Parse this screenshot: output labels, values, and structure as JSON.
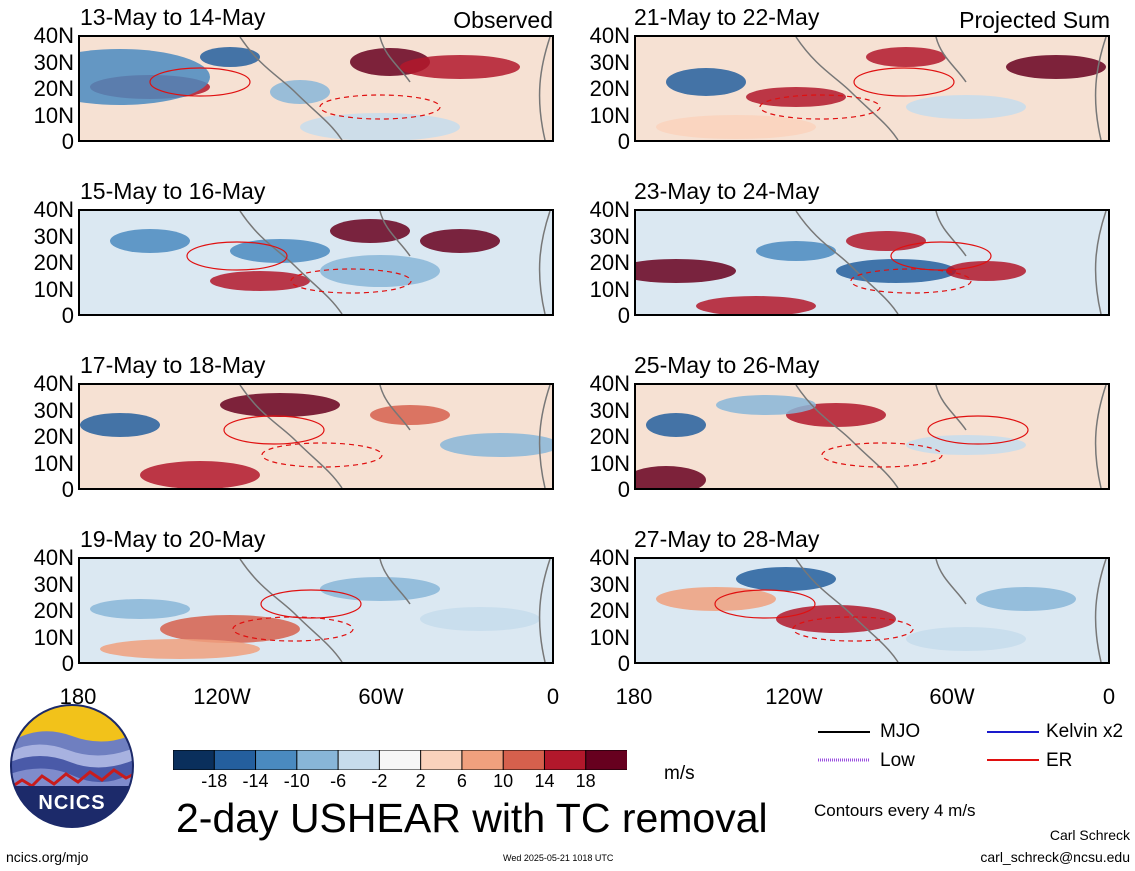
{
  "panels_left": [
    {
      "period": "13-May to 14-May",
      "label": "Observed"
    },
    {
      "period": "15-May to 16-May",
      "label": ""
    },
    {
      "period": "17-May to 18-May",
      "label": ""
    },
    {
      "period": "19-May to 20-May",
      "label": ""
    }
  ],
  "panels_right": [
    {
      "period": "21-May to 22-May",
      "label": "Projected Sum"
    },
    {
      "period": "23-May to 24-May",
      "label": ""
    },
    {
      "period": "25-May to 26-May",
      "label": ""
    },
    {
      "period": "27-May to 28-May",
      "label": ""
    }
  ],
  "lat_ticks": [
    "40N",
    "30N",
    "20N",
    "10N",
    "0"
  ],
  "lon_ticks": [
    "180",
    "120W",
    "60W",
    "0"
  ],
  "colorbar": {
    "ticks": [
      "-18",
      "-14",
      "-10",
      "-6",
      "-2",
      "2",
      "6",
      "10",
      "14",
      "18"
    ],
    "unit": "m/s",
    "colors": [
      "#0a2f5c",
      "#245f9e",
      "#4a8ac0",
      "#88b6d8",
      "#c6dcec",
      "#f7f7f7",
      "#fad2bc",
      "#f0a07e",
      "#d6604d",
      "#b2182b",
      "#67001f"
    ]
  },
  "legend": {
    "mjo": "MJO",
    "kelvin": "Kelvin x2",
    "low": "Low",
    "er": "ER",
    "contours": "Contours every 4 m/s",
    "colors": {
      "mjo": "#000000",
      "kelvin": "#1a1acc",
      "low": "#9b4fe0",
      "er": "#e01010"
    }
  },
  "title": "2-day USHEAR with TC removal",
  "logo_text": "NCICS",
  "footer": {
    "url": "ncics.org/mjo",
    "timestamp": "Wed 2025-05-21 1018 UTC",
    "author": "Carl Schreck",
    "email": "carl_schreck@ncsu.edu"
  }
}
